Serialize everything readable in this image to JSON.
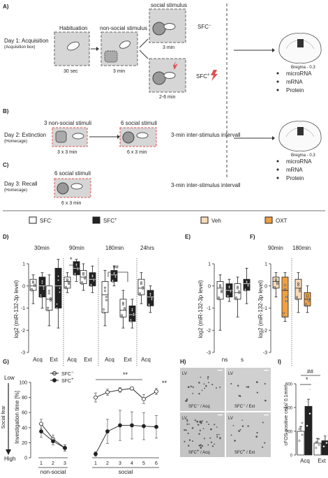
{
  "panelA": {
    "label": "A)",
    "day": "Day 1: Acquisition",
    "day_sub": "(Acquisition box)",
    "habituation": "Habituation",
    "habituation_time": "30 sec",
    "non_social": "non-social stimulus",
    "non_social_time": "3 min",
    "social_stimulus": "social stimulus",
    "sfc_minus": "SFC",
    "sfc_minus_sup": "−",
    "sfc_minus_time": "3 min",
    "sfc_plus": "SFC",
    "sfc_plus_sup": "+",
    "sfc_plus_time": "2-6 min"
  },
  "brain_outcomes": {
    "bregma": "Bregma - 0.3",
    "items": [
      "microRNA",
      "mRNA",
      "Protein"
    ]
  },
  "panelB": {
    "label": "B)",
    "day": "Day 2: Extinction",
    "day_sub": "(Homecage)",
    "nonsocial": "3 non-social stimuli",
    "nonsocial_time": "3 x 3 min",
    "social": "6 social stimuli",
    "social_time": "6 x 3 min",
    "interval": "3-min inter-stimulus intervall"
  },
  "panelC": {
    "label": "C)",
    "day": "Day 3: Recall",
    "day_sub": "(Homecage)",
    "social": "6 social stimuli",
    "social_time": "6 x 3 min",
    "interval": "3-min inter-stimulus intervall"
  },
  "legend": [
    {
      "label": "SFC",
      "sup": "-",
      "color": "#ffffff"
    },
    {
      "label": "SFC",
      "sup": "+",
      "color": "#222222"
    },
    {
      "label": "Veh",
      "sup": "",
      "color": "#f8d9b8"
    },
    {
      "label": "OXT",
      "sup": "",
      "color": "#f0a040"
    }
  ],
  "colors": {
    "dark": "#222222",
    "veh": "#f8d9b8",
    "oxt": "#f0a040",
    "red": "#e05050"
  },
  "panelD": {
    "label": "D)",
    "ylabel": "log2 (miR-132-3p level)",
    "timepoints": [
      "30min",
      "90min",
      "180min",
      "24hrs"
    ],
    "sig_star": "*",
    "sig_hash": "##",
    "chart_data": {
      "type": "box",
      "ylim": [
        -3,
        1
      ],
      "yticks": [
        1,
        0,
        -1,
        -2,
        -3
      ],
      "categories": [
        "Acq",
        "Ext",
        "Acq",
        "Ext",
        "Acq",
        "Ext",
        "Acq"
      ],
      "series": [
        {
          "name": "SFC-",
          "boxes": [
            [
              -0.8,
              -0.2,
              0.0,
              0.3,
              0.5
            ],
            [
              -1.8,
              -1.1,
              -0.6,
              0.0,
              0.5
            ],
            [
              -0.3,
              -0.1,
              0.2,
              0.4,
              0.6
            ],
            [
              -0.2,
              0.1,
              0.4,
              0.7,
              1.0
            ],
            [
              -1.8,
              -1.2,
              -0.4,
              0.2,
              0.7
            ],
            [
              -1.9,
              -1.4,
              -1.1,
              -0.6,
              -0.2
            ],
            [
              -0.8,
              -0.4,
              -0.1,
              0.3,
              0.6
            ]
          ]
        },
        {
          "name": "SFC+",
          "boxes": [
            [
              -1.0,
              -0.5,
              0.0,
              0.4,
              0.6
            ],
            [
              -1.9,
              -1.0,
              0.0,
              0.8,
              1.2
            ],
            [
              0.2,
              0.5,
              0.8,
              1.1,
              1.2
            ],
            [
              -0.3,
              0.0,
              0.3,
              0.6,
              0.9
            ],
            [
              0.0,
              0.2,
              0.5,
              0.7,
              0.9
            ],
            [
              -1.9,
              -1.6,
              -1.3,
              -0.9,
              -0.6
            ],
            [
              -1.2,
              -0.9,
              -0.5,
              -0.2,
              0.0
            ]
          ]
        }
      ]
    }
  },
  "panelE": {
    "label": "E)",
    "ylabel": "log2 (miR-132-3p level)",
    "chart_data": {
      "type": "box",
      "ylim": [
        -3,
        1
      ],
      "yticks": [
        1,
        0,
        -1,
        -2,
        -3
      ],
      "categories": [
        "ns",
        "s"
      ],
      "series": [
        {
          "name": "SFC-",
          "boxes": [
            [
              -2.0,
              -0.6,
              -0.1,
              0.2,
              0.5
            ],
            [
              -1.4,
              -0.6,
              -0.3,
              0.1,
              0.4
            ]
          ]
        },
        {
          "name": "SFC+",
          "boxes": [
            [
              -0.7,
              -0.5,
              -0.2,
              0.1,
              0.3
            ],
            [
              -0.8,
              -0.2,
              0.1,
              0.3,
              0.8
            ]
          ]
        }
      ]
    }
  },
  "panelF": {
    "label": "F)",
    "ylabel": "log2 (miR-132-3p level)",
    "timepoints": [
      "90min",
      "180min"
    ],
    "chart_data": {
      "type": "box",
      "ylim": [
        -3,
        1
      ],
      "yticks": [
        1,
        0,
        -1,
        -2,
        -3
      ],
      "categories": [
        "90min",
        "180min"
      ],
      "series": [
        {
          "name": "Veh",
          "boxes": [
            [
              -0.5,
              -0.1,
              0.2,
              0.4,
              0.6
            ],
            [
              -1.2,
              -0.6,
              -0.1,
              0.3,
              0.6
            ]
          ]
        },
        {
          "name": "OXT",
          "boxes": [
            [
              -1.6,
              -1.4,
              -0.2,
              0.4,
              0.6
            ],
            [
              -1.2,
              -0.9,
              -0.6,
              -0.3,
              0.0
            ]
          ]
        }
      ]
    }
  },
  "panelG": {
    "label": "G)",
    "low": "Low",
    "high": "High",
    "social_fear": "Social fear",
    "ylabel": "Investigation time [%]",
    "legend": [
      {
        "label": "SFC",
        "sup": "−"
      },
      {
        "label": "SFC",
        "sup": "+"
      }
    ],
    "sig1": "**",
    "sig2": "**",
    "group_nonsocial": "non-social",
    "group_social": "social",
    "chart_data": {
      "type": "line",
      "ylim": [
        0,
        100
      ],
      "yticks": [
        0,
        20,
        40,
        60,
        80,
        100
      ],
      "nonsocial_x": [
        "1",
        "2",
        "3"
      ],
      "social_x": [
        "1",
        "2",
        "3",
        "4",
        "5",
        "6"
      ],
      "series": [
        {
          "name": "SFC−",
          "nonsocial": [
            45,
            25,
            13
          ],
          "nonsocial_err": [
            6,
            5,
            4
          ],
          "social": [
            80,
            87,
            90,
            92,
            78,
            88
          ],
          "social_err": [
            6,
            4,
            3,
            2,
            6,
            4
          ]
        },
        {
          "name": "SFC+",
          "nonsocial": [
            35,
            22,
            13
          ],
          "nonsocial_err": [
            8,
            5,
            4
          ],
          "social": [
            5,
            35,
            43,
            43,
            42,
            41
          ],
          "social_err": [
            3,
            16,
            20,
            18,
            18,
            15
          ]
        }
      ]
    }
  },
  "panelH": {
    "label": "H)",
    "images": [
      {
        "lv": "LV",
        "label": "SFC",
        "sup": "−",
        "cond": " / Acq"
      },
      {
        "lv": "LV",
        "label": "SFC",
        "sup": "−",
        "cond": " / Ext"
      },
      {
        "lv": "LV",
        "label": "SFC",
        "sup": "+",
        "cond": " / Acq"
      },
      {
        "lv": "LV",
        "label": "SFC",
        "sup": "+",
        "cond": " / Ext"
      }
    ]
  },
  "panelI": {
    "label": "I)",
    "ylabel": "cFOS positive cells/ 0.1mm²",
    "sig_star": "*",
    "sig_hash": "##",
    "chart_data": {
      "type": "bar",
      "ylim": [
        0,
        600
      ],
      "yticks": [
        0,
        200,
        400,
        600
      ],
      "categories": [
        "Acq",
        "Ext"
      ],
      "series": [
        {
          "name": "SFC-",
          "values": [
            200,
            100
          ],
          "err": [
            40,
            40
          ]
        },
        {
          "name": "SFC+",
          "values": [
            410,
            120
          ],
          "err": [
            60,
            40
          ]
        }
      ]
    }
  }
}
